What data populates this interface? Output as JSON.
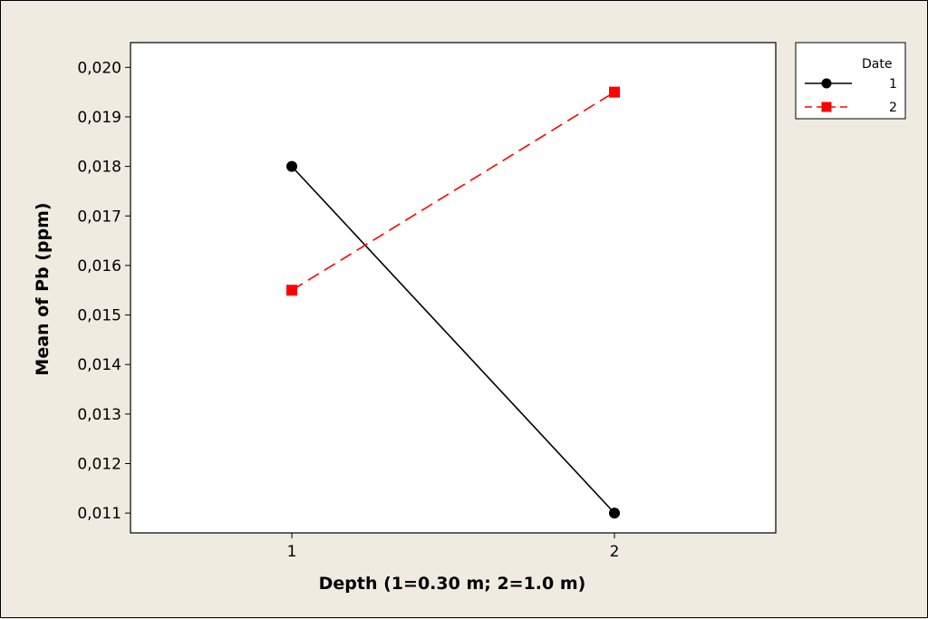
{
  "chart_data": {
    "type": "line",
    "title": "",
    "xlabel": "Depth (1=0.30 m; 2=1.0 m)",
    "ylabel": "Mean of Pb (ppm)",
    "categories": [
      "1",
      "2"
    ],
    "ylim": [
      0.0106,
      0.0205
    ],
    "yticks": [
      "0,011",
      "0,012",
      "0,013",
      "0,014",
      "0,015",
      "0,016",
      "0,017",
      "0,018",
      "0,019",
      "0,020"
    ],
    "ytick_values": [
      0.011,
      0.012,
      0.013,
      0.014,
      0.015,
      0.016,
      0.017,
      0.018,
      0.019,
      0.02
    ],
    "grid": false,
    "legend": {
      "title": "Date",
      "position": "top-right"
    },
    "series": [
      {
        "name": "1",
        "values": [
          0.018,
          0.011
        ],
        "color": "#000000",
        "marker": "circle",
        "line_style": "solid"
      },
      {
        "name": "2",
        "values": [
          0.0155,
          0.0195
        ],
        "color": "#ff0000",
        "marker": "square",
        "line_style": "dashed"
      }
    ]
  }
}
